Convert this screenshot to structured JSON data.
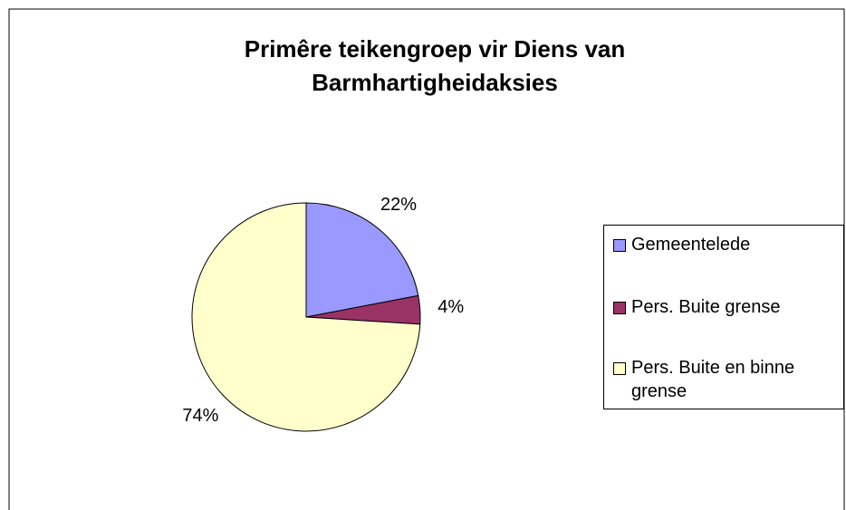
{
  "chart_data": {
    "type": "pie",
    "title": "Primêre teikengroep vir Diens van Barmhartigheidaksies",
    "categories": [
      "Gemeentelede",
      "Pers. Buite grense",
      "Pers. Buite en binne grense"
    ],
    "values": [
      22,
      4,
      74
    ],
    "value_labels": [
      "22%",
      "4%",
      "74%"
    ],
    "colors": [
      "#9999ff",
      "#993366",
      "#ffffcc"
    ],
    "legend": "right"
  }
}
